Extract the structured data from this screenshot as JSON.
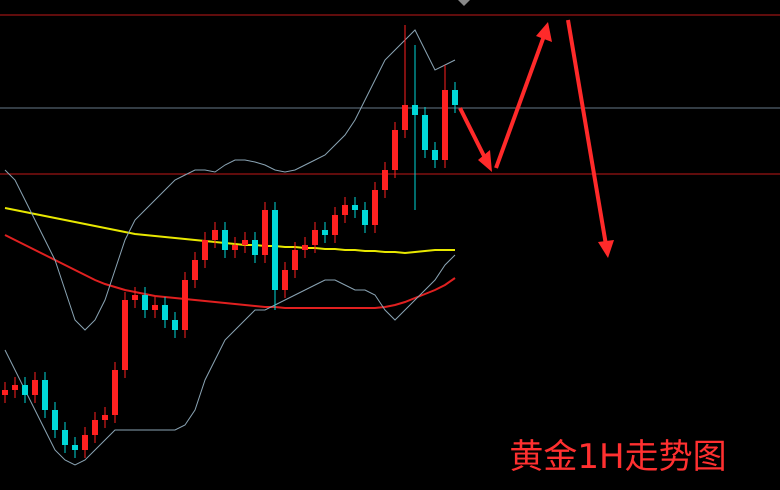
{
  "chart_data": {
    "type": "candlestick",
    "title": "黄金1H走势图",
    "ylim": [
      0,
      490
    ],
    "up_color": "#ff2020",
    "down_color": "#00d8d8",
    "open": [
      95,
      100,
      105,
      95,
      110,
      80,
      60,
      45,
      40,
      55,
      70,
      75,
      120,
      190,
      195,
      180,
      185,
      170,
      160,
      210,
      230,
      250,
      260,
      240,
      245,
      250,
      235,
      280,
      200,
      220,
      240,
      245,
      260,
      255,
      275,
      285,
      280,
      265,
      300,
      320,
      360,
      385,
      375,
      340,
      330,
      400
    ],
    "high": [
      108,
      113,
      113,
      118,
      118,
      88,
      68,
      53,
      63,
      78,
      83,
      128,
      198,
      203,
      203,
      193,
      193,
      178,
      218,
      238,
      258,
      268,
      268,
      253,
      258,
      258,
      288,
      288,
      228,
      248,
      253,
      268,
      268,
      283,
      293,
      293,
      288,
      308,
      328,
      368,
      465,
      445,
      383,
      348,
      425,
      408
    ],
    "low": [
      87,
      92,
      87,
      87,
      72,
      52,
      37,
      32,
      32,
      47,
      62,
      67,
      112,
      182,
      172,
      172,
      162,
      152,
      152,
      202,
      222,
      242,
      232,
      232,
      237,
      227,
      227,
      180,
      192,
      212,
      232,
      237,
      247,
      247,
      267,
      272,
      257,
      257,
      292,
      312,
      352,
      280,
      332,
      322,
      322,
      377
    ],
    "close": [
      100,
      105,
      95,
      110,
      80,
      60,
      45,
      40,
      55,
      70,
      75,
      120,
      190,
      195,
      180,
      185,
      170,
      160,
      210,
      230,
      250,
      260,
      240,
      245,
      250,
      235,
      280,
      200,
      220,
      240,
      245,
      260,
      255,
      275,
      285,
      280,
      265,
      300,
      320,
      360,
      385,
      375,
      340,
      330,
      400,
      385
    ],
    "lines": [
      {
        "color": "#e8e800",
        "values": [
          282,
          280,
          278,
          276,
          274,
          272,
          270,
          268,
          266,
          264,
          262,
          260,
          258,
          256,
          255,
          254,
          253,
          252,
          251,
          250,
          249,
          248,
          247,
          246,
          245,
          245,
          244,
          244,
          243,
          243,
          242,
          242,
          241,
          241,
          240,
          240,
          239,
          239,
          238,
          238,
          237,
          238,
          239,
          240,
          240,
          240
        ]
      },
      {
        "color": "#e02020",
        "values": [
          255,
          250,
          245,
          240,
          235,
          230,
          225,
          220,
          215,
          210,
          206,
          203,
          200,
          198,
          196,
          194,
          193,
          192,
          191,
          190,
          189,
          188,
          187,
          186,
          185,
          184,
          183,
          183,
          182,
          182,
          182,
          182,
          182,
          182,
          182,
          182,
          182,
          182,
          183,
          185,
          188,
          192,
          196,
          200,
          205,
          212
        ]
      },
      {
        "color": "#8aa4b4",
        "values": [
          320,
          310,
          290,
          270,
          250,
          230,
          200,
          170,
          160,
          170,
          190,
          220,
          250,
          270,
          280,
          290,
          300,
          310,
          315,
          320,
          320,
          318,
          325,
          330,
          330,
          328,
          325,
          320,
          318,
          320,
          325,
          330,
          335,
          345,
          355,
          370,
          390,
          410,
          430,
          440,
          450,
          460,
          440,
          420,
          425,
          430
        ]
      },
      {
        "color": "#8aa4b4",
        "values": [
          140,
          120,
          100,
          80,
          60,
          40,
          30,
          25,
          30,
          40,
          50,
          60,
          60,
          60,
          60,
          60,
          60,
          60,
          65,
          80,
          110,
          130,
          150,
          160,
          170,
          180,
          180,
          185,
          190,
          195,
          200,
          205,
          210,
          210,
          205,
          200,
          200,
          195,
          180,
          170,
          180,
          190,
          200,
          210,
          225,
          235
        ]
      }
    ],
    "hlines": [
      {
        "color": "#c01818",
        "value": 475
      },
      {
        "color": "#667788",
        "value": 382
      },
      {
        "color": "#c01818",
        "value": 316
      }
    ]
  }
}
